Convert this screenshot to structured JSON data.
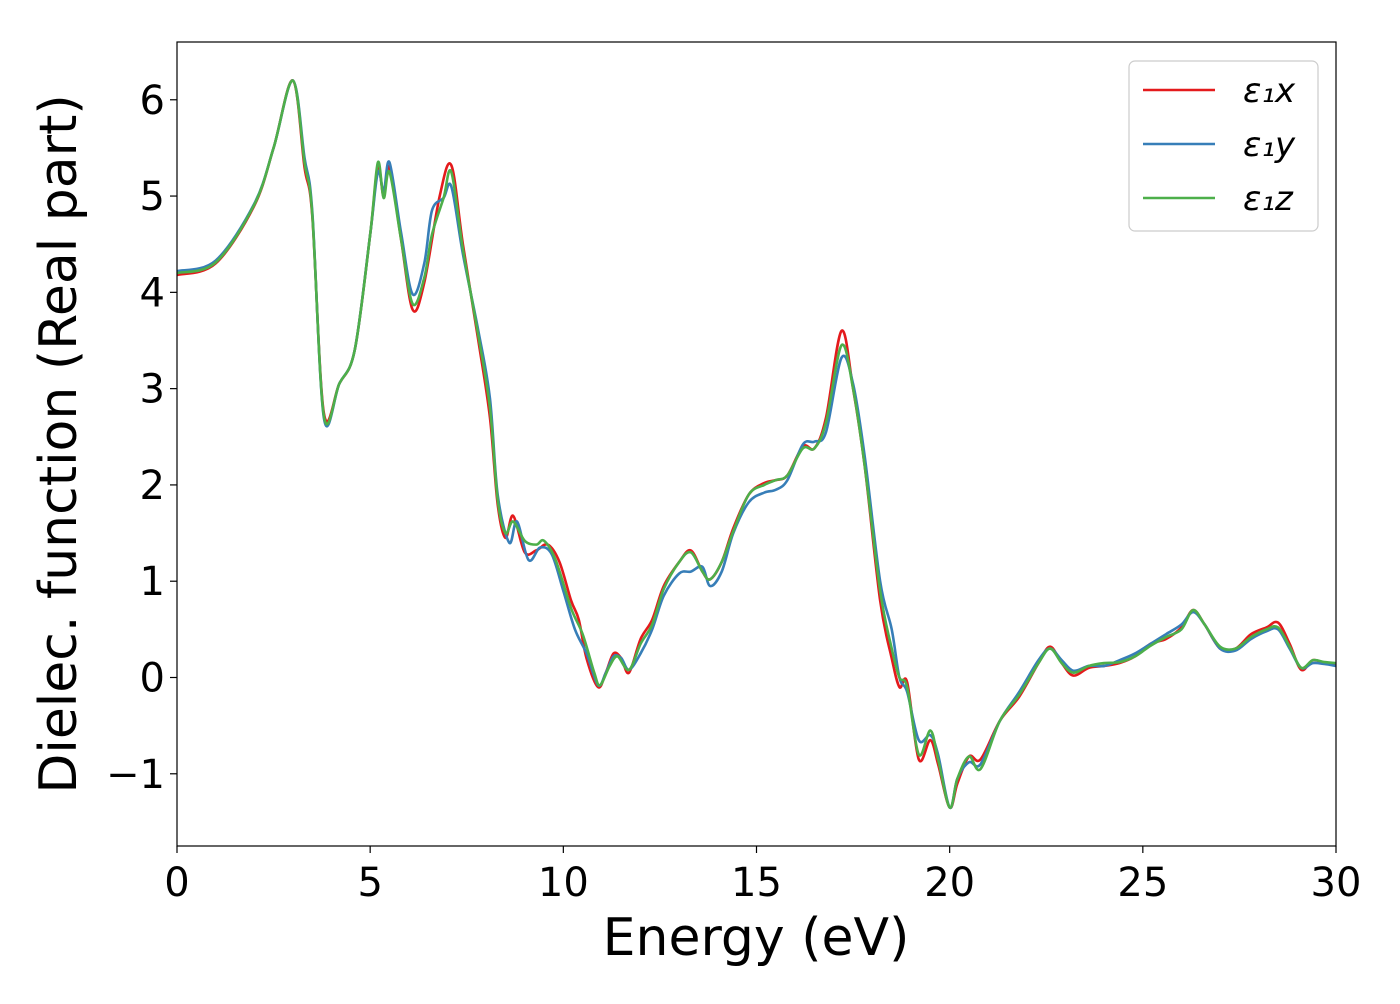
{
  "chart_data": {
    "type": "line",
    "title": "",
    "xlabel": "Energy (eV)",
    "ylabel": "Dielec. function (Real part)",
    "xlim": [
      0,
      30
    ],
    "ylim": [
      -1.75,
      6.6
    ],
    "xticks": [
      0,
      5,
      10,
      15,
      20,
      25,
      30
    ],
    "xtick_labels": [
      "0",
      "5",
      "10",
      "15",
      "20",
      "25",
      "30"
    ],
    "yticks": [
      -1,
      0,
      1,
      2,
      3,
      4,
      5,
      6
    ],
    "ytick_labels": [
      "−1",
      "0",
      "1",
      "2",
      "3",
      "4",
      "5",
      "6"
    ],
    "grid": false,
    "legend_position": "top-right",
    "series": [
      {
        "name": "ε₁x",
        "color": "#e41a1c",
        "points": [
          [
            0,
            4.18
          ],
          [
            1,
            4.3
          ],
          [
            2,
            4.9
          ],
          [
            2.5,
            5.5
          ],
          [
            3,
            6.2
          ],
          [
            3.3,
            5.3
          ],
          [
            3.5,
            4.8
          ],
          [
            3.8,
            2.75
          ],
          [
            4.2,
            3.05
          ],
          [
            4.6,
            3.4
          ],
          [
            5,
            4.6
          ],
          [
            5.2,
            5.3
          ],
          [
            5.35,
            5.0
          ],
          [
            5.5,
            5.3
          ],
          [
            5.8,
            4.55
          ],
          [
            6.1,
            3.82
          ],
          [
            6.4,
            4.1
          ],
          [
            6.8,
            5.0
          ],
          [
            7.1,
            5.32
          ],
          [
            7.4,
            4.5
          ],
          [
            7.8,
            3.5
          ],
          [
            8.1,
            2.7
          ],
          [
            8.3,
            1.8
          ],
          [
            8.5,
            1.45
          ],
          [
            8.7,
            1.68
          ],
          [
            9,
            1.3
          ],
          [
            9.3,
            1.32
          ],
          [
            9.6,
            1.38
          ],
          [
            9.9,
            1.2
          ],
          [
            10.2,
            0.8
          ],
          [
            10.4,
            0.6
          ],
          [
            10.6,
            0.2
          ],
          [
            10.9,
            -0.1
          ],
          [
            11.1,
            0.05
          ],
          [
            11.3,
            0.25
          ],
          [
            11.5,
            0.2
          ],
          [
            11.7,
            0.05
          ],
          [
            12,
            0.4
          ],
          [
            12.3,
            0.6
          ],
          [
            12.6,
            0.95
          ],
          [
            13,
            1.2
          ],
          [
            13.3,
            1.32
          ],
          [
            13.6,
            1.1
          ],
          [
            13.8,
            1.02
          ],
          [
            14.1,
            1.2
          ],
          [
            14.4,
            1.55
          ],
          [
            14.8,
            1.9
          ],
          [
            15.2,
            2.02
          ],
          [
            15.5,
            2.05
          ],
          [
            15.8,
            2.1
          ],
          [
            16.2,
            2.4
          ],
          [
            16.5,
            2.38
          ],
          [
            16.8,
            2.7
          ],
          [
            17.2,
            3.6
          ],
          [
            17.5,
            3.0
          ],
          [
            17.8,
            2.2
          ],
          [
            18.2,
            0.8
          ],
          [
            18.5,
            0.2
          ],
          [
            18.7,
            -0.1
          ],
          [
            18.9,
            -0.05
          ],
          [
            19.2,
            -0.85
          ],
          [
            19.5,
            -0.65
          ],
          [
            19.7,
            -0.9
          ],
          [
            20,
            -1.35
          ],
          [
            20.2,
            -1.1
          ],
          [
            20.5,
            -0.82
          ],
          [
            20.8,
            -0.85
          ],
          [
            21.3,
            -0.45
          ],
          [
            21.8,
            -0.2
          ],
          [
            22.3,
            0.15
          ],
          [
            22.6,
            0.32
          ],
          [
            22.9,
            0.15
          ],
          [
            23.2,
            0.02
          ],
          [
            23.6,
            0.1
          ],
          [
            24,
            0.12
          ],
          [
            24.4,
            0.15
          ],
          [
            24.8,
            0.22
          ],
          [
            25.2,
            0.35
          ],
          [
            25.6,
            0.4
          ],
          [
            26,
            0.52
          ],
          [
            26.3,
            0.7
          ],
          [
            26.6,
            0.55
          ],
          [
            27,
            0.3
          ],
          [
            27.4,
            0.3
          ],
          [
            27.8,
            0.45
          ],
          [
            28.2,
            0.52
          ],
          [
            28.5,
            0.57
          ],
          [
            28.8,
            0.35
          ],
          [
            29.1,
            0.08
          ],
          [
            29.4,
            0.18
          ],
          [
            29.7,
            0.15
          ],
          [
            30,
            0.14
          ]
        ]
      },
      {
        "name": "ε₁y",
        "color": "#377eb8",
        "points": [
          [
            0,
            4.22
          ],
          [
            1,
            4.33
          ],
          [
            2,
            4.92
          ],
          [
            2.5,
            5.5
          ],
          [
            3,
            6.2
          ],
          [
            3.3,
            5.4
          ],
          [
            3.5,
            4.85
          ],
          [
            3.8,
            2.7
          ],
          [
            4.2,
            3.05
          ],
          [
            4.6,
            3.4
          ],
          [
            5,
            4.6
          ],
          [
            5.2,
            5.25
          ],
          [
            5.35,
            5.05
          ],
          [
            5.5,
            5.35
          ],
          [
            5.8,
            4.62
          ],
          [
            6.1,
            3.98
          ],
          [
            6.4,
            4.3
          ],
          [
            6.6,
            4.85
          ],
          [
            6.9,
            4.98
          ],
          [
            7.1,
            5.1
          ],
          [
            7.4,
            4.4
          ],
          [
            7.8,
            3.6
          ],
          [
            8.1,
            2.9
          ],
          [
            8.3,
            1.9
          ],
          [
            8.6,
            1.4
          ],
          [
            8.8,
            1.62
          ],
          [
            9.1,
            1.22
          ],
          [
            9.4,
            1.35
          ],
          [
            9.7,
            1.28
          ],
          [
            10,
            0.9
          ],
          [
            10.3,
            0.5
          ],
          [
            10.6,
            0.25
          ],
          [
            10.9,
            -0.08
          ],
          [
            11.1,
            0.05
          ],
          [
            11.3,
            0.22
          ],
          [
            11.5,
            0.2
          ],
          [
            11.7,
            0.08
          ],
          [
            12,
            0.25
          ],
          [
            12.3,
            0.5
          ],
          [
            12.6,
            0.85
          ],
          [
            13,
            1.08
          ],
          [
            13.3,
            1.1
          ],
          [
            13.6,
            1.15
          ],
          [
            13.8,
            0.95
          ],
          [
            14.1,
            1.1
          ],
          [
            14.4,
            1.5
          ],
          [
            14.8,
            1.82
          ],
          [
            15.2,
            1.92
          ],
          [
            15.5,
            1.95
          ],
          [
            15.8,
            2.05
          ],
          [
            16.2,
            2.42
          ],
          [
            16.5,
            2.45
          ],
          [
            16.8,
            2.55
          ],
          [
            17.2,
            3.32
          ],
          [
            17.5,
            3.05
          ],
          [
            17.8,
            2.3
          ],
          [
            18.2,
            1.0
          ],
          [
            18.5,
            0.5
          ],
          [
            18.7,
            0.0
          ],
          [
            18.9,
            -0.15
          ],
          [
            19.2,
            -0.65
          ],
          [
            19.5,
            -0.6
          ],
          [
            19.7,
            -0.8
          ],
          [
            20,
            -1.35
          ],
          [
            20.2,
            -1.05
          ],
          [
            20.5,
            -0.88
          ],
          [
            20.8,
            -0.9
          ],
          [
            21.3,
            -0.45
          ],
          [
            21.8,
            -0.15
          ],
          [
            22.3,
            0.18
          ],
          [
            22.6,
            0.3
          ],
          [
            22.9,
            0.18
          ],
          [
            23.2,
            0.07
          ],
          [
            23.6,
            0.12
          ],
          [
            24,
            0.12
          ],
          [
            24.4,
            0.18
          ],
          [
            24.8,
            0.25
          ],
          [
            25.2,
            0.35
          ],
          [
            25.6,
            0.45
          ],
          [
            26,
            0.55
          ],
          [
            26.3,
            0.68
          ],
          [
            26.6,
            0.55
          ],
          [
            27,
            0.3
          ],
          [
            27.4,
            0.28
          ],
          [
            27.8,
            0.4
          ],
          [
            28.2,
            0.48
          ],
          [
            28.5,
            0.5
          ],
          [
            28.8,
            0.3
          ],
          [
            29.1,
            0.1
          ],
          [
            29.4,
            0.15
          ],
          [
            29.7,
            0.14
          ],
          [
            30,
            0.12
          ]
        ]
      },
      {
        "name": "ε₁z",
        "color": "#4daf4a",
        "points": [
          [
            0,
            4.2
          ],
          [
            1,
            4.31
          ],
          [
            2,
            4.91
          ],
          [
            2.5,
            5.5
          ],
          [
            3,
            6.2
          ],
          [
            3.3,
            5.35
          ],
          [
            3.5,
            4.82
          ],
          [
            3.8,
            2.72
          ],
          [
            4.2,
            3.05
          ],
          [
            4.6,
            3.4
          ],
          [
            5,
            4.6
          ],
          [
            5.2,
            5.35
          ],
          [
            5.35,
            4.98
          ],
          [
            5.5,
            5.25
          ],
          [
            5.8,
            4.55
          ],
          [
            6.1,
            3.88
          ],
          [
            6.4,
            4.15
          ],
          [
            6.6,
            4.6
          ],
          [
            6.9,
            4.98
          ],
          [
            7.1,
            5.25
          ],
          [
            7.4,
            4.45
          ],
          [
            7.8,
            3.55
          ],
          [
            8.1,
            2.8
          ],
          [
            8.3,
            1.85
          ],
          [
            8.5,
            1.5
          ],
          [
            8.7,
            1.62
          ],
          [
            9,
            1.42
          ],
          [
            9.3,
            1.38
          ],
          [
            9.5,
            1.42
          ],
          [
            9.8,
            1.22
          ],
          [
            10.2,
            0.72
          ],
          [
            10.5,
            0.45
          ],
          [
            10.8,
            0.05
          ],
          [
            10.95,
            -0.08
          ],
          [
            11.2,
            0.12
          ],
          [
            11.4,
            0.22
          ],
          [
            11.7,
            0.08
          ],
          [
            12,
            0.35
          ],
          [
            12.3,
            0.55
          ],
          [
            12.6,
            0.92
          ],
          [
            13,
            1.2
          ],
          [
            13.3,
            1.3
          ],
          [
            13.6,
            1.1
          ],
          [
            13.8,
            1.02
          ],
          [
            14.1,
            1.2
          ],
          [
            14.4,
            1.52
          ],
          [
            14.8,
            1.9
          ],
          [
            15.2,
            2.0
          ],
          [
            15.5,
            2.05
          ],
          [
            15.8,
            2.1
          ],
          [
            16.2,
            2.38
          ],
          [
            16.5,
            2.38
          ],
          [
            16.8,
            2.65
          ],
          [
            17.2,
            3.45
          ],
          [
            17.5,
            3.0
          ],
          [
            17.8,
            2.2
          ],
          [
            18.2,
            0.9
          ],
          [
            18.5,
            0.3
          ],
          [
            18.7,
            0.0
          ],
          [
            18.9,
            -0.1
          ],
          [
            19.2,
            -0.8
          ],
          [
            19.5,
            -0.55
          ],
          [
            19.7,
            -0.85
          ],
          [
            20,
            -1.35
          ],
          [
            20.2,
            -1.05
          ],
          [
            20.5,
            -0.82
          ],
          [
            20.8,
            -0.95
          ],
          [
            21.3,
            -0.45
          ],
          [
            21.8,
            -0.18
          ],
          [
            22.3,
            0.15
          ],
          [
            22.6,
            0.3
          ],
          [
            22.9,
            0.15
          ],
          [
            23.2,
            0.05
          ],
          [
            23.6,
            0.12
          ],
          [
            24,
            0.15
          ],
          [
            24.4,
            0.16
          ],
          [
            24.8,
            0.22
          ],
          [
            25.2,
            0.33
          ],
          [
            25.6,
            0.42
          ],
          [
            26,
            0.5
          ],
          [
            26.3,
            0.7
          ],
          [
            26.6,
            0.55
          ],
          [
            27,
            0.32
          ],
          [
            27.4,
            0.3
          ],
          [
            27.8,
            0.42
          ],
          [
            28.2,
            0.5
          ],
          [
            28.5,
            0.52
          ],
          [
            28.8,
            0.32
          ],
          [
            29.1,
            0.1
          ],
          [
            29.4,
            0.18
          ],
          [
            29.7,
            0.16
          ],
          [
            30,
            0.15
          ]
        ]
      }
    ]
  }
}
